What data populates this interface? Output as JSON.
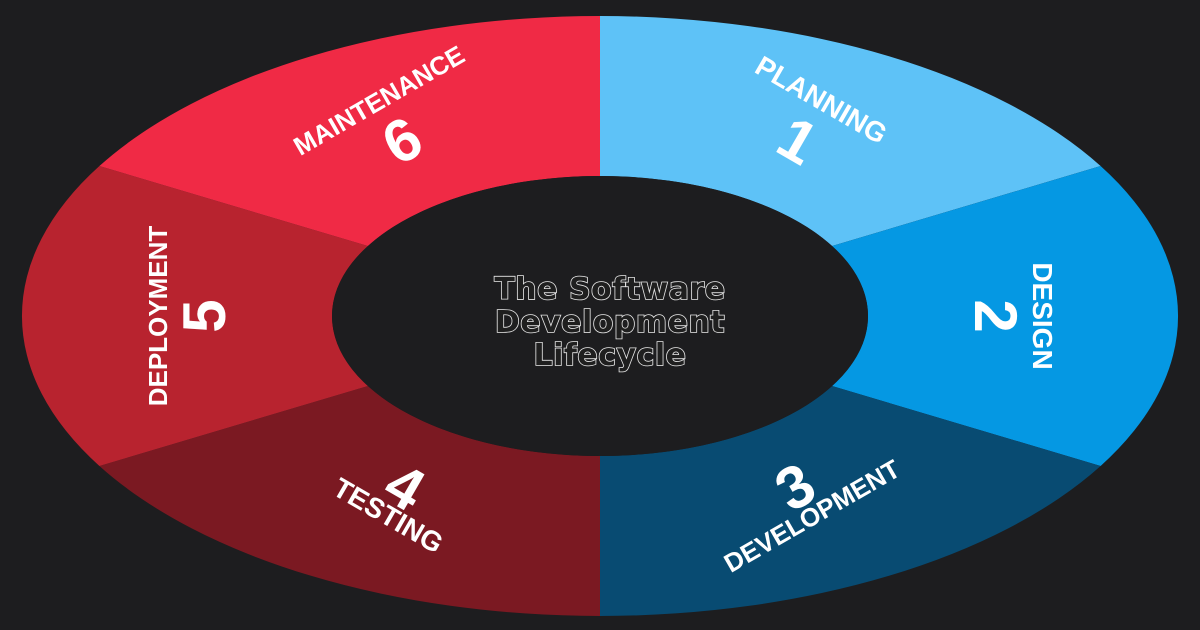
{
  "center": {
    "lines": [
      "The Software",
      "Development",
      "Lifecycle"
    ]
  },
  "stages": [
    {
      "key": "planning",
      "label": "PLANNING",
      "number": "1",
      "color": "#5ec2f7"
    },
    {
      "key": "design",
      "label": "DESIGN",
      "number": "2",
      "color": "#0598e3"
    },
    {
      "key": "development",
      "label": "DEVELOPMENT",
      "number": "3",
      "color": "#084b72"
    },
    {
      "key": "testing",
      "label": "TESTING",
      "number": "4",
      "color": "#7b1922"
    },
    {
      "key": "deployment",
      "label": "DEPLOYMENT",
      "number": "5",
      "color": "#b8232f"
    },
    {
      "key": "maintenance",
      "label": "MAINTENANCE",
      "number": "6",
      "color": "#f02a45"
    }
  ],
  "background_color": "#1d1d1f"
}
